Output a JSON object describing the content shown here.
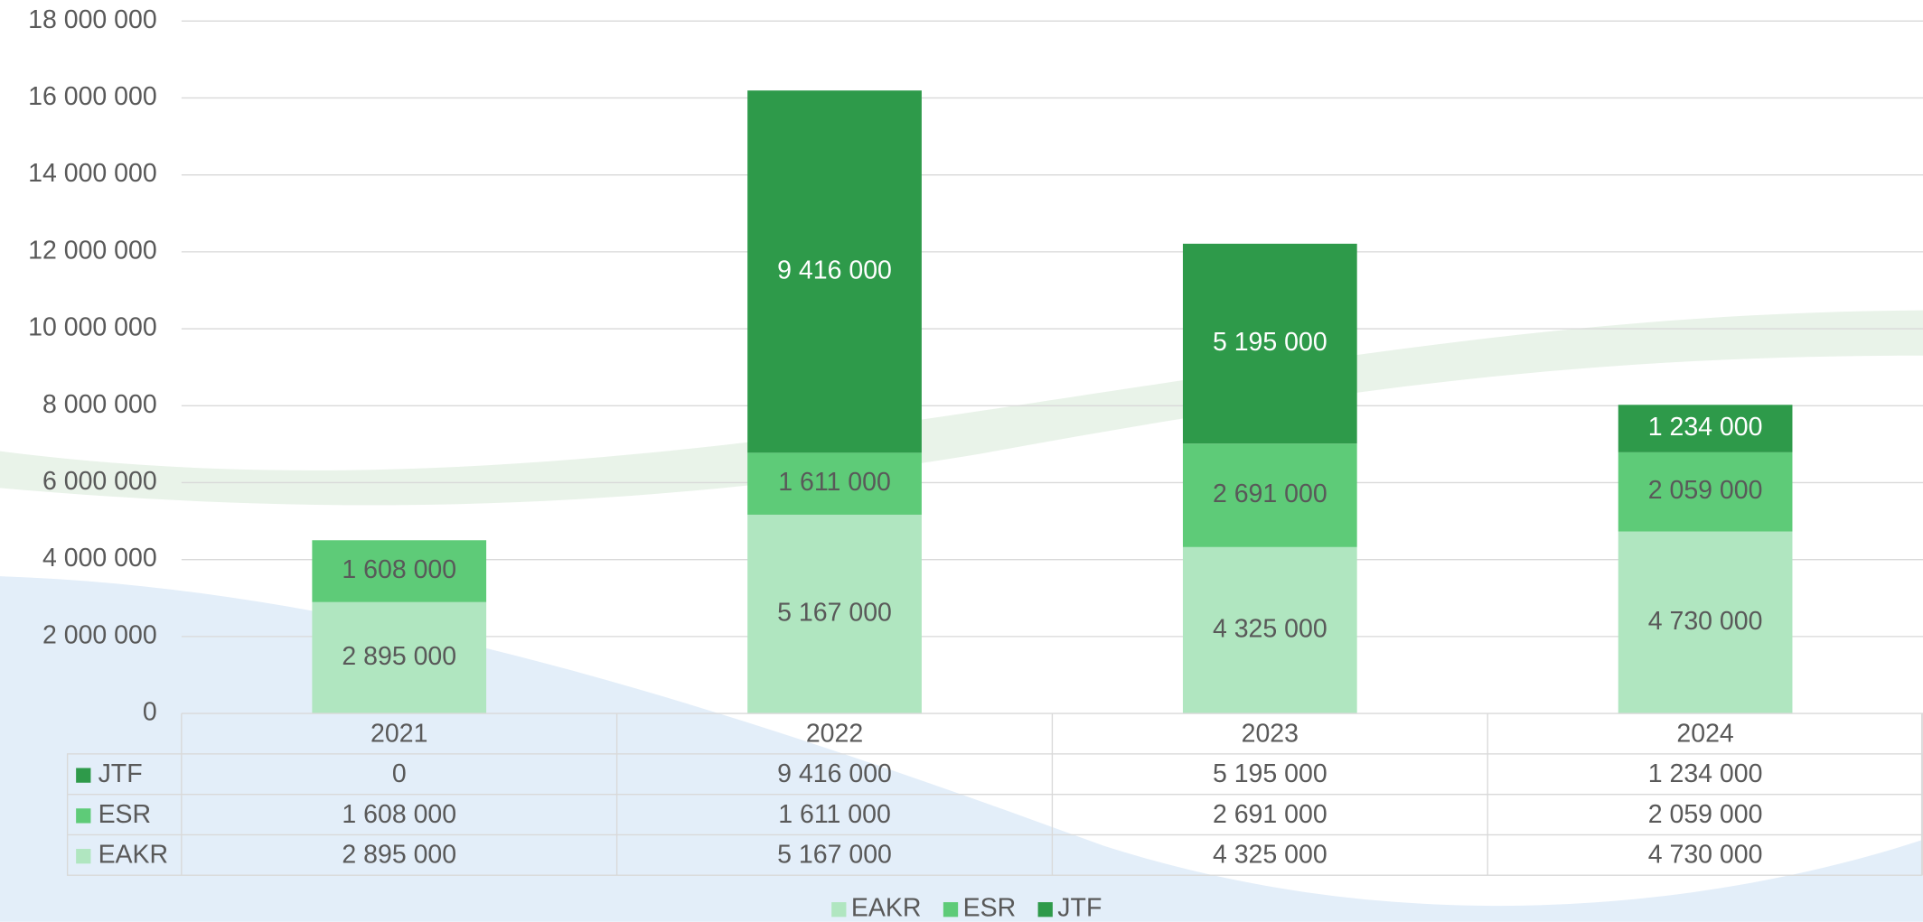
{
  "chart_data": {
    "type": "stacked-bar",
    "categories": [
      "2021",
      "2022",
      "2023",
      "2024"
    ],
    "series": [
      {
        "name": "EAKR",
        "color": "#b0e6c0",
        "values": [
          2895000,
          5167000,
          4325000,
          4730000
        ],
        "value_labels": [
          "2 895 000",
          "5 167 000",
          "4 325 000",
          "4 730 000"
        ]
      },
      {
        "name": "ESR",
        "color": "#5ecb78",
        "values": [
          1608000,
          1611000,
          2691000,
          2059000
        ],
        "value_labels": [
          "1 608 000",
          "1 611 000",
          "2 691 000",
          "2 059 000"
        ]
      },
      {
        "name": "JTF",
        "color": "#2e9a4a",
        "values": [
          0,
          9416000,
          5195000,
          1234000
        ],
        "value_labels": [
          "0",
          "9 416 000",
          "5 195 000",
          "1 234 000"
        ]
      }
    ],
    "ylim": [
      0,
      18000000
    ],
    "yticks": [
      {
        "value": 0,
        "label": "0"
      },
      {
        "value": 2000000,
        "label": "2 000 000"
      },
      {
        "value": 4000000,
        "label": "4 000 000"
      },
      {
        "value": 6000000,
        "label": "6 000 000"
      },
      {
        "value": 8000000,
        "label": "8 000 000"
      },
      {
        "value": 10000000,
        "label": "10 000 000"
      },
      {
        "value": 12000000,
        "label": "12 000 000"
      },
      {
        "value": 14000000,
        "label": "14 000 000"
      },
      {
        "value": 16000000,
        "label": "16 000 000"
      },
      {
        "value": 18000000,
        "label": "18 000 000"
      }
    ],
    "grid": true,
    "legend": "bottom",
    "data_table": true
  }
}
